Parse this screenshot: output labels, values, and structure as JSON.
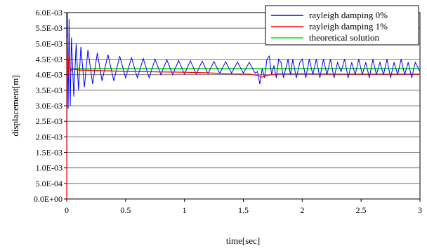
{
  "chart_data": {
    "type": "line",
    "title": "",
    "xlabel": "time[sec]",
    "ylabel": "displacement[m]",
    "xlim": [
      0,
      3
    ],
    "ylim": [
      0,
      0.006
    ],
    "x_ticks": [
      0,
      0.5,
      1,
      1.5,
      2,
      2.5,
      3
    ],
    "x_tick_labels": [
      "0",
      "0.5",
      "1",
      "1.5",
      "2",
      "2.5",
      "3"
    ],
    "y_ticks": [
      0,
      0.0005,
      0.001,
      0.0015,
      0.002,
      0.0025,
      0.003,
      0.0035,
      0.004,
      0.0045,
      0.005,
      0.0055,
      0.006
    ],
    "y_tick_labels": [
      "0.0E+00",
      "5.0E-04",
      "1.0E-03",
      "1.5E-03",
      "2.0E-03",
      "2.5E-03",
      "3.0E-03",
      "3.5E-03",
      "4.0E-03",
      "4.5E-03",
      "5.0E-03",
      "5.5E-03",
      "6.0E-03"
    ],
    "grid": "horizontal",
    "legend_position": "top-right",
    "series": [
      {
        "name": "rayleigh damping 0%",
        "color": "#0000ff",
        "points": [
          [
            0,
            0
          ],
          [
            0.005,
            0.006
          ],
          [
            0.012,
            0.0029
          ],
          [
            0.02,
            0.0058
          ],
          [
            0.03,
            0.003
          ],
          [
            0.04,
            0.0052
          ],
          [
            0.06,
            0.0033
          ],
          [
            0.08,
            0.005
          ],
          [
            0.1,
            0.0035
          ],
          [
            0.12,
            0.0049
          ],
          [
            0.15,
            0.0036
          ],
          [
            0.18,
            0.0048
          ],
          [
            0.22,
            0.0037
          ],
          [
            0.26,
            0.0047
          ],
          [
            0.3,
            0.0038
          ],
          [
            0.35,
            0.00465
          ],
          [
            0.4,
            0.0038
          ],
          [
            0.45,
            0.0046
          ],
          [
            0.5,
            0.0039
          ],
          [
            0.55,
            0.00455
          ],
          [
            0.6,
            0.0039
          ],
          [
            0.65,
            0.00452
          ],
          [
            0.7,
            0.0039
          ],
          [
            0.75,
            0.0045
          ],
          [
            0.8,
            0.004
          ],
          [
            0.85,
            0.00448
          ],
          [
            0.9,
            0.004
          ],
          [
            0.95,
            0.00446
          ],
          [
            1.0,
            0.00402
          ],
          [
            1.05,
            0.00445
          ],
          [
            1.1,
            0.00402
          ],
          [
            1.15,
            0.00444
          ],
          [
            1.2,
            0.00403
          ],
          [
            1.25,
            0.00443
          ],
          [
            1.3,
            0.00404
          ],
          [
            1.35,
            0.00442
          ],
          [
            1.4,
            0.00405
          ],
          [
            1.45,
            0.00441
          ],
          [
            1.5,
            0.00405
          ],
          [
            1.55,
            0.0044
          ],
          [
            1.6,
            0.00405
          ],
          [
            1.62,
            0.0041
          ],
          [
            1.64,
            0.0037
          ],
          [
            1.66,
            0.0042
          ],
          [
            1.68,
            0.0039
          ],
          [
            1.7,
            0.0045
          ],
          [
            1.72,
            0.0046
          ],
          [
            1.74,
            0.004
          ],
          [
            1.76,
            0.0043
          ],
          [
            1.78,
            0.0039
          ],
          [
            1.8,
            0.0045
          ],
          [
            1.82,
            0.0044
          ],
          [
            1.84,
            0.0039
          ],
          [
            1.86,
            0.0042
          ],
          [
            1.88,
            0.0045
          ],
          [
            1.9,
            0.004
          ],
          [
            1.92,
            0.0045
          ],
          [
            1.95,
            0.0039
          ],
          [
            1.98,
            0.0044
          ],
          [
            2.0,
            0.0045
          ],
          [
            2.03,
            0.0039
          ],
          [
            2.06,
            0.0045
          ],
          [
            2.09,
            0.004
          ],
          [
            2.12,
            0.0045
          ],
          [
            2.15,
            0.0039
          ],
          [
            2.18,
            0.0045
          ],
          [
            2.21,
            0.004
          ],
          [
            2.24,
            0.0045
          ],
          [
            2.27,
            0.0039
          ],
          [
            2.3,
            0.0044
          ],
          [
            2.33,
            0.0041
          ],
          [
            2.36,
            0.0045
          ],
          [
            2.39,
            0.0039
          ],
          [
            2.42,
            0.0044
          ],
          [
            2.45,
            0.004
          ],
          [
            2.48,
            0.0045
          ],
          [
            2.51,
            0.004
          ],
          [
            2.54,
            0.0044
          ],
          [
            2.57,
            0.0039
          ],
          [
            2.6,
            0.0045
          ],
          [
            2.63,
            0.004
          ],
          [
            2.66,
            0.0044
          ],
          [
            2.69,
            0.004
          ],
          [
            2.72,
            0.0045
          ],
          [
            2.75,
            0.0039
          ],
          [
            2.78,
            0.0044
          ],
          [
            2.81,
            0.004
          ],
          [
            2.84,
            0.0045
          ],
          [
            2.87,
            0.004
          ],
          [
            2.9,
            0.0044
          ],
          [
            2.93,
            0.0039
          ],
          [
            2.96,
            0.0044
          ],
          [
            3.0,
            0.0041
          ]
        ]
      },
      {
        "name": "rayleigh damping 1%",
        "color": "#ff0000",
        "points": [
          [
            0,
            0
          ],
          [
            0.004,
            0.0052
          ],
          [
            0.01,
            0.0039
          ],
          [
            0.018,
            0.0046
          ],
          [
            0.03,
            0.0041
          ],
          [
            0.05,
            0.00418
          ],
          [
            0.1,
            0.00415
          ],
          [
            0.3,
            0.00413
          ],
          [
            0.5,
            0.00411
          ],
          [
            0.8,
            0.00409
          ],
          [
            1.0,
            0.00408
          ],
          [
            1.2,
            0.00406
          ],
          [
            1.4,
            0.00403
          ],
          [
            1.55,
            0.00402
          ],
          [
            1.62,
            0.00398
          ],
          [
            1.66,
            0.00392
          ],
          [
            1.7,
            0.00398
          ],
          [
            1.8,
            0.00403
          ],
          [
            2.0,
            0.00403
          ],
          [
            2.5,
            0.00402
          ],
          [
            3.0,
            0.00402
          ]
        ]
      },
      {
        "name": "theoretical solution",
        "color": "#00dd00",
        "points": [
          [
            0,
            0.0042
          ],
          [
            3.0,
            0.0042
          ]
        ]
      }
    ]
  }
}
